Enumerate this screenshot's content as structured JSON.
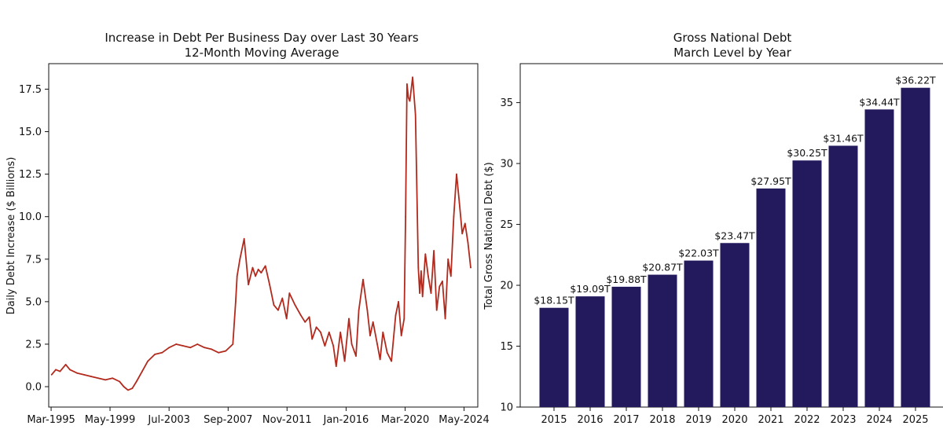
{
  "chart_data": [
    {
      "type": "line",
      "title": "Increase in Debt Per Business Day over Last 30 Years",
      "subtitle": "12-Month Moving Average",
      "xlabel": "",
      "ylabel": "Daily Debt Increase ($ Billions)",
      "xlim": [
        1995.0,
        2025.3
      ],
      "ylim": [
        -1.2,
        19.0
      ],
      "x_ticks": [
        {
          "label": "Mar-1995",
          "value": 1995.17
        },
        {
          "label": "May-1999",
          "value": 1999.33
        },
        {
          "label": "Jul-2003",
          "value": 2003.5
        },
        {
          "label": "Sep-2007",
          "value": 2007.67
        },
        {
          "label": "Nov-2011",
          "value": 2011.83
        },
        {
          "label": "Jan-2016",
          "value": 2016.0
        },
        {
          "label": "Mar-2020",
          "value": 2020.17
        },
        {
          "label": "May-2024",
          "value": 2024.33
        }
      ],
      "y_ticks": [
        0.0,
        2.5,
        5.0,
        7.5,
        10.0,
        12.5,
        15.0,
        17.5
      ],
      "y_tick_labels": [
        "0.0",
        "2.5",
        "5.0",
        "7.5",
        "10.0",
        "12.5",
        "15.0",
        "17.5"
      ],
      "grid": false,
      "series": [
        {
          "color": "#b22a1d",
          "x": [
            1995.2,
            1995.5,
            1995.8,
            1996.2,
            1996.5,
            1997.0,
            1997.5,
            1998.0,
            1998.5,
            1999.0,
            1999.5,
            2000.0,
            2000.3,
            2000.6,
            2000.9,
            2001.2,
            2001.6,
            2002.0,
            2002.5,
            2003.0,
            2003.5,
            2004.0,
            2004.5,
            2005.0,
            2005.5,
            2006.0,
            2006.5,
            2007.0,
            2007.5,
            2008.0,
            2008.2,
            2008.3,
            2008.5,
            2008.8,
            2009.1,
            2009.4,
            2009.6,
            2009.8,
            2010.0,
            2010.3,
            2010.6,
            2010.9,
            2011.2,
            2011.5,
            2011.8,
            2012.0,
            2012.4,
            2012.8,
            2013.1,
            2013.4,
            2013.6,
            2013.9,
            2014.2,
            2014.5,
            2014.8,
            2015.1,
            2015.3,
            2015.6,
            2015.9,
            2016.2,
            2016.4,
            2016.7,
            2016.9,
            2017.2,
            2017.5,
            2017.7,
            2017.9,
            2018.2,
            2018.4,
            2018.6,
            2018.9,
            2019.2,
            2019.5,
            2019.7,
            2019.9,
            2020.1,
            2020.2,
            2020.3,
            2020.4,
            2020.5,
            2020.7,
            2020.9,
            2021.1,
            2021.2,
            2021.3,
            2021.4,
            2021.6,
            2021.8,
            2022.0,
            2022.2,
            2022.4,
            2022.6,
            2022.8,
            2023.0,
            2023.2,
            2023.4,
            2023.6,
            2023.8,
            2024.0,
            2024.2,
            2024.4,
            2024.6,
            2024.8
          ],
          "y": [
            0.7,
            1.0,
            0.9,
            1.3,
            1.0,
            0.8,
            0.7,
            0.6,
            0.5,
            0.4,
            0.5,
            0.3,
            0.0,
            -0.2,
            -0.1,
            0.3,
            0.9,
            1.5,
            1.9,
            2.0,
            2.3,
            2.5,
            2.4,
            2.3,
            2.5,
            2.3,
            2.2,
            2.0,
            2.1,
            2.5,
            5.0,
            6.5,
            7.5,
            8.7,
            6.0,
            7.0,
            6.5,
            6.9,
            6.7,
            7.1,
            6.0,
            4.8,
            4.5,
            5.2,
            4.0,
            5.5,
            4.8,
            4.2,
            3.8,
            4.1,
            2.8,
            3.5,
            3.2,
            2.4,
            3.2,
            2.4,
            1.2,
            3.2,
            1.5,
            4.0,
            2.5,
            1.8,
            4.5,
            6.3,
            4.5,
            3.0,
            3.8,
            2.5,
            1.6,
            3.2,
            2.0,
            1.5,
            4.2,
            5.0,
            3.0,
            4.0,
            10.0,
            17.8,
            17.0,
            16.8,
            18.2,
            16.0,
            7.0,
            5.5,
            6.8,
            5.3,
            7.8,
            6.5,
            5.5,
            8.0,
            4.5,
            5.9,
            6.2,
            4.0,
            7.5,
            6.5,
            10.0,
            12.5,
            10.8,
            9.0,
            9.6,
            8.5,
            7.0
          ]
        }
      ]
    },
    {
      "type": "bar",
      "title": "Gross National Debt",
      "subtitle": "March Level by Year",
      "xlabel": "",
      "ylabel": "Total Gross National Debt ($)",
      "ylim": [
        10,
        38.2
      ],
      "y_ticks": [
        10,
        15,
        20,
        25,
        30,
        35
      ],
      "y_tick_labels": [
        "10",
        "15",
        "20",
        "25",
        "30",
        "35"
      ],
      "grid": false,
      "categories": [
        "2015",
        "2016",
        "2017",
        "2018",
        "2019",
        "2020",
        "2021",
        "2022",
        "2023",
        "2024",
        "2025"
      ],
      "values": [
        18.15,
        19.09,
        19.88,
        20.87,
        22.03,
        23.47,
        27.95,
        30.25,
        31.46,
        34.44,
        36.22
      ],
      "data_labels": [
        "$18.15T",
        "$19.09T",
        "$19.88T",
        "$20.87T",
        "$22.03T",
        "$23.47T",
        "$27.95T",
        "$30.25T",
        "$31.46T",
        "$34.44T",
        "$36.22T"
      ],
      "bar_color": "#231a5e"
    }
  ]
}
